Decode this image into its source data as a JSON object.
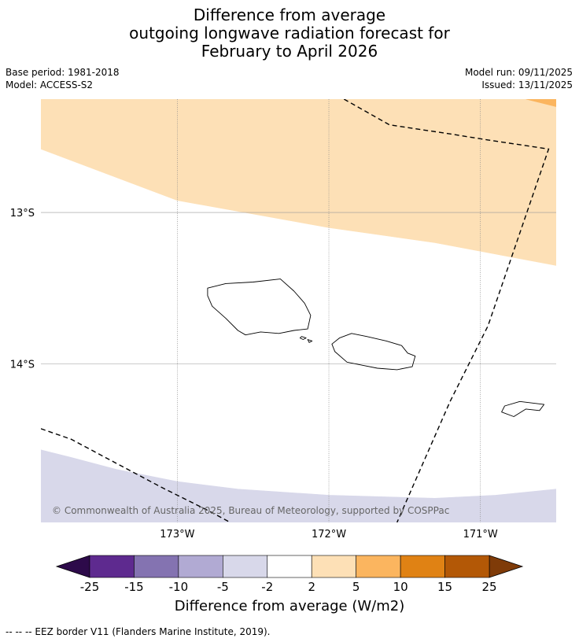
{
  "title": {
    "line1": "Difference from average",
    "line2": "outgoing longwave radiation forecast for",
    "line3": "February to April 2026"
  },
  "meta": {
    "base_period": "Base period: 1981-2018",
    "model": "Model: ACCESS-S2",
    "model_run": "Model run: 09/11/2025",
    "issued": "Issued: 13/11/2025"
  },
  "map": {
    "lat_range": [
      -15.05,
      -12.25
    ],
    "lon_range": [
      -173.9,
      -170.5
    ],
    "lat_ticks": [
      {
        "value": -13,
        "label": "13°S"
      },
      {
        "value": -14,
        "label": "14°S"
      }
    ],
    "lon_ticks": [
      {
        "value": -173,
        "label": "173°W"
      },
      {
        "value": -172,
        "label": "172°W"
      },
      {
        "value": -171,
        "label": "171°W"
      }
    ],
    "copyright": "© Commonwealth of Australia 2025, Bureau of Meteorology, supported by COSPPac",
    "colors": {
      "light_orange": "#fde0b6",
      "orange": "#fbb55f",
      "light_purple": "#d8d8ea",
      "coast": "#000000"
    },
    "regions": [
      {
        "color": "light_orange",
        "coords": [
          [
            -173.9,
            -12.25
          ],
          [
            -170.5,
            -12.25
          ],
          [
            -170.5,
            -13.35
          ],
          [
            -171.3,
            -13.2
          ],
          [
            -172.0,
            -13.1
          ],
          [
            -173.0,
            -12.92
          ],
          [
            -173.9,
            -12.58
          ]
        ]
      },
      {
        "color": "orange",
        "coords": [
          [
            -170.7,
            -12.25
          ],
          [
            -170.5,
            -12.25
          ],
          [
            -170.5,
            -12.3
          ]
        ]
      },
      {
        "color": "light_purple",
        "coords": [
          [
            -173.9,
            -14.57
          ],
          [
            -173.7,
            -14.62
          ],
          [
            -173.4,
            -14.7
          ],
          [
            -173.0,
            -14.78
          ],
          [
            -172.6,
            -14.83
          ],
          [
            -172.0,
            -14.87
          ],
          [
            -171.3,
            -14.89
          ],
          [
            -170.9,
            -14.87
          ],
          [
            -170.5,
            -14.83
          ],
          [
            -170.5,
            -15.05
          ],
          [
            -173.9,
            -15.05
          ]
        ]
      }
    ],
    "eez_lines": [
      [
        [
          -171.9,
          -12.25
        ],
        [
          -171.6,
          -12.42
        ],
        [
          -171.2,
          -12.48
        ],
        [
          -170.95,
          -12.52
        ],
        [
          -170.55,
          -12.58
        ],
        [
          -170.95,
          -13.75
        ],
        [
          -171.2,
          -14.25
        ],
        [
          -171.55,
          -15.05
        ]
      ],
      [
        [
          -173.9,
          -14.43
        ],
        [
          -173.7,
          -14.5
        ],
        [
          -173.4,
          -14.66
        ],
        [
          -173.1,
          -14.82
        ],
        [
          -172.8,
          -14.97
        ],
        [
          -172.65,
          -15.05
        ]
      ]
    ],
    "coastlines": [
      [
        [
          -172.8,
          -13.5
        ],
        [
          -172.68,
          -13.47
        ],
        [
          -172.5,
          -13.46
        ],
        [
          -172.32,
          -13.44
        ],
        [
          -172.23,
          -13.52
        ],
        [
          -172.16,
          -13.6
        ],
        [
          -172.12,
          -13.68
        ],
        [
          -172.14,
          -13.77
        ],
        [
          -172.23,
          -13.78
        ],
        [
          -172.33,
          -13.8
        ],
        [
          -172.45,
          -13.79
        ],
        [
          -172.55,
          -13.81
        ],
        [
          -172.6,
          -13.78
        ],
        [
          -172.68,
          -13.7
        ],
        [
          -172.77,
          -13.62
        ],
        [
          -172.8,
          -13.55
        ],
        [
          -172.8,
          -13.5
        ]
      ],
      [
        [
          -171.93,
          -13.83
        ],
        [
          -171.85,
          -13.8
        ],
        [
          -171.75,
          -13.82
        ],
        [
          -171.62,
          -13.85
        ],
        [
          -171.52,
          -13.88
        ],
        [
          -171.48,
          -13.93
        ],
        [
          -171.43,
          -13.95
        ],
        [
          -171.45,
          -14.02
        ],
        [
          -171.55,
          -14.04
        ],
        [
          -171.68,
          -14.03
        ],
        [
          -171.78,
          -14.01
        ],
        [
          -171.88,
          -13.99
        ],
        [
          -171.96,
          -13.92
        ],
        [
          -171.98,
          -13.87
        ],
        [
          -171.93,
          -13.83
        ]
      ],
      [
        [
          -172.18,
          -13.82
        ],
        [
          -172.15,
          -13.83
        ],
        [
          -172.17,
          -13.84
        ],
        [
          -172.19,
          -13.83
        ],
        [
          -172.18,
          -13.82
        ]
      ],
      [
        [
          -172.14,
          -13.84
        ],
        [
          -172.11,
          -13.85
        ],
        [
          -172.13,
          -13.86
        ],
        [
          -172.14,
          -13.84
        ]
      ],
      [
        [
          -170.84,
          -14.28
        ],
        [
          -170.74,
          -14.25
        ],
        [
          -170.66,
          -14.26
        ],
        [
          -170.58,
          -14.27
        ],
        [
          -170.61,
          -14.31
        ],
        [
          -170.7,
          -14.3
        ],
        [
          -170.78,
          -14.35
        ],
        [
          -170.86,
          -14.32
        ],
        [
          -170.84,
          -14.28
        ]
      ]
    ]
  },
  "colorbar": {
    "title": "Difference from average (W/m2)",
    "under_color": "#2d0a4a",
    "over_color": "#7f3b08",
    "segments": [
      {
        "color": "#5e2a8f"
      },
      {
        "color": "#8473b1"
      },
      {
        "color": "#b1aad3"
      },
      {
        "color": "#d8d8ea"
      },
      {
        "color": "#ffffff"
      },
      {
        "color": "#fde0b6"
      },
      {
        "color": "#fbb55f"
      },
      {
        "color": "#e08214"
      },
      {
        "color": "#b35806"
      }
    ],
    "tick_labels": [
      "-25",
      "-15",
      "-10",
      "-5",
      "-2",
      "2",
      "5",
      "10",
      "15",
      "25"
    ]
  },
  "footnote": "--  --  -- EEZ border V11 (Flanders Marine Institute, 2019)."
}
